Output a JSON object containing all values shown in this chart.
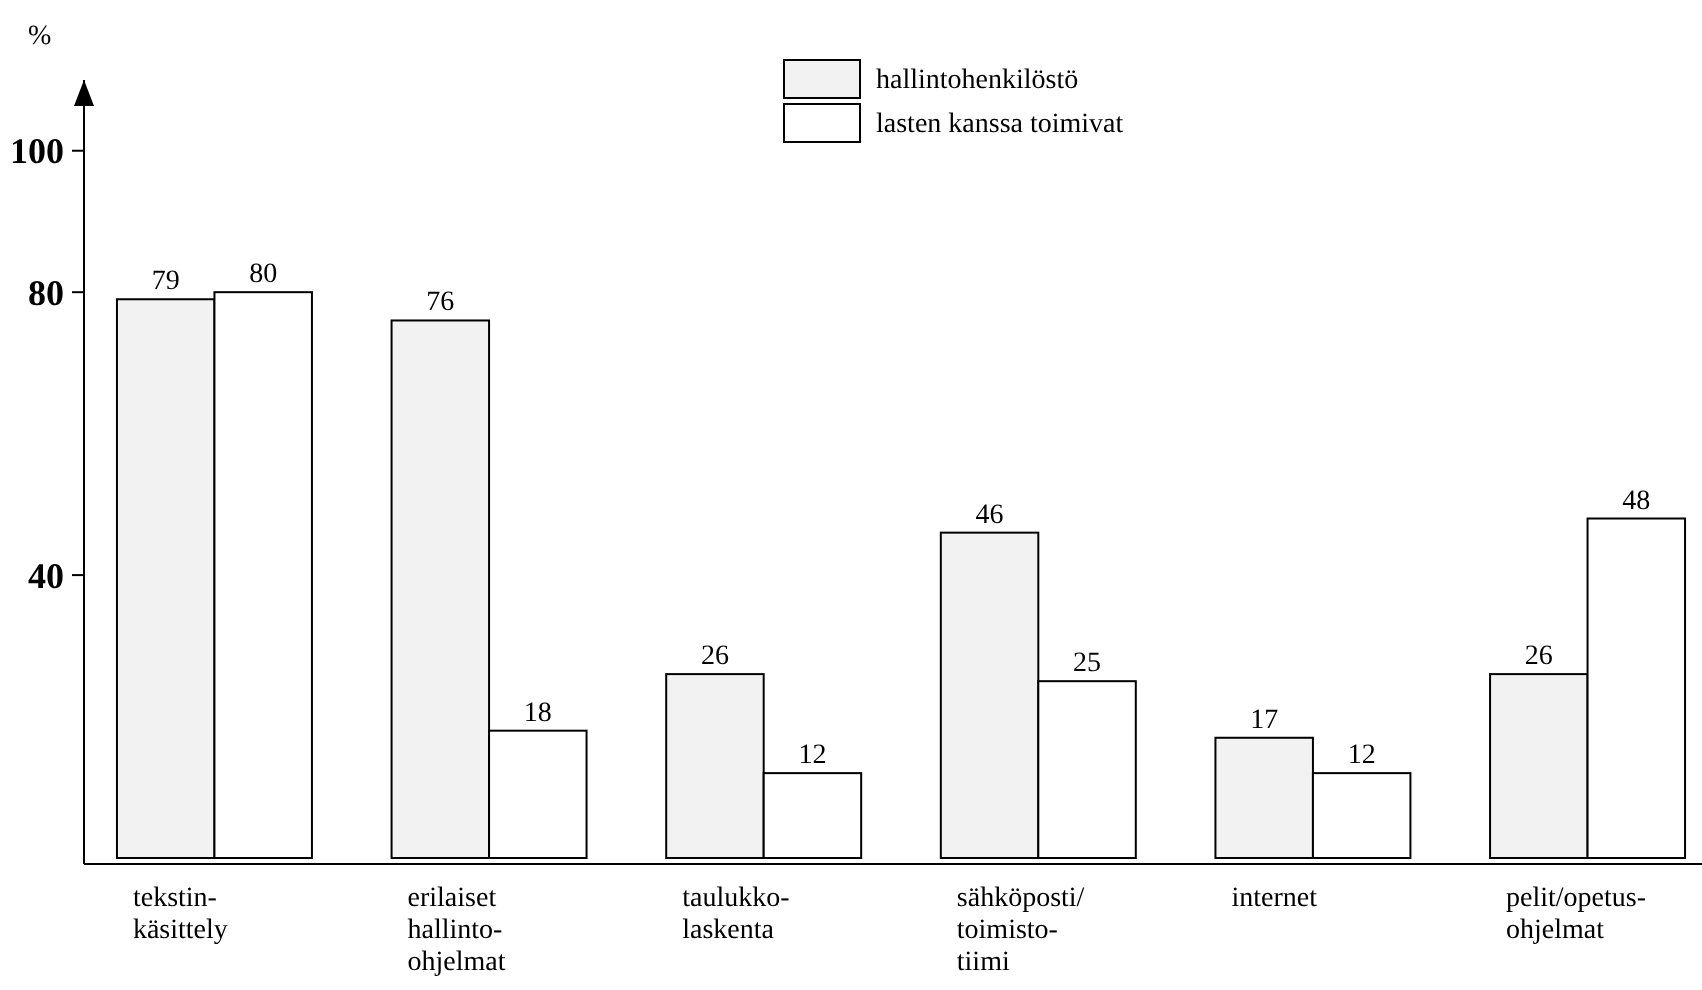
{
  "chart_data": {
    "type": "bar",
    "ylabel": "%",
    "categories": [
      "tekstin-\nkäsittely",
      "erilaiset\nhallinto-\nohjelmat",
      "taulukko-\nlaskenta",
      "sähköposti/\ntoimisto-\ntiimi",
      "internet",
      "pelit/opetus-\nohjelmat"
    ],
    "series": [
      {
        "name": "hallintohenkilöstö",
        "color": "#f2f2f2",
        "values": [
          79,
          76,
          26,
          46,
          17,
          26
        ]
      },
      {
        "name": "lasten kanssa toimivat",
        "color": "#ffffff",
        "values": [
          80,
          18,
          12,
          25,
          12,
          48
        ]
      }
    ],
    "ylim": [
      0,
      110
    ],
    "yticks": [
      40,
      80,
      100
    ],
    "data_labels": true,
    "legend": "top"
  }
}
